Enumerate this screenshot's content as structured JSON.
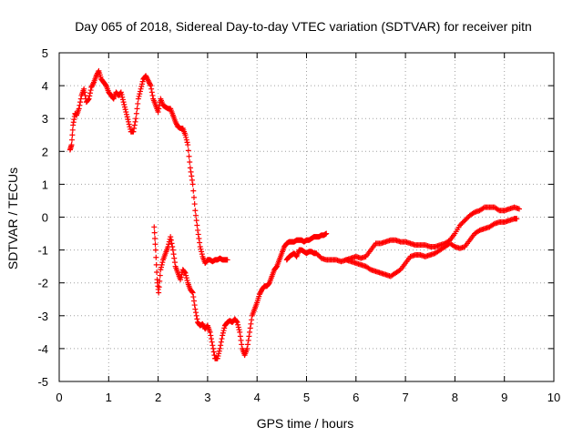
{
  "chart_data": {
    "type": "scatter",
    "title": "Day 065 of 2018, Sidereal Day-to-day VTEC variation (SDTVAR) for receiver pitn",
    "xlabel": "GPS time / hours",
    "ylabel": "SDTVAR / TECUs",
    "xlim": [
      0,
      10
    ],
    "ylim": [
      -5,
      5
    ],
    "xticks": [
      "0",
      "1",
      "2",
      "3",
      "4",
      "5",
      "6",
      "7",
      "8",
      "9",
      "10"
    ],
    "yticks": [
      "-5",
      "-4",
      "-3",
      "-2",
      "-1",
      "0",
      "1",
      "2",
      "3",
      "4",
      "5"
    ],
    "grid": true,
    "marker": "+",
    "color": "#ff0000",
    "series": [
      {
        "x": [
          0.22,
          0.25,
          0.28,
          0.32,
          0.35,
          0.4,
          0.45,
          0.5,
          0.55,
          0.6,
          0.65,
          0.7,
          0.75,
          0.8,
          0.85,
          0.9,
          0.95,
          1.0,
          1.05,
          1.1,
          1.15,
          1.2,
          1.25,
          1.3,
          1.35,
          1.4,
          1.45,
          1.5,
          1.55,
          1.6,
          1.65,
          1.7,
          1.75,
          1.8,
          1.85,
          1.9,
          1.95,
          2.0,
          2.05,
          2.1,
          2.15,
          2.2,
          2.25,
          2.3,
          2.35,
          2.4,
          2.45,
          2.5,
          2.55,
          2.6,
          2.65,
          2.7,
          2.75,
          2.8,
          2.85,
          2.9,
          2.95,
          3.0,
          3.05,
          3.1,
          3.15,
          3.2,
          3.25,
          3.3,
          3.35,
          3.4
        ],
        "y": [
          2.05,
          2.2,
          2.8,
          3.15,
          3.1,
          3.3,
          3.7,
          3.9,
          3.5,
          3.6,
          3.95,
          4.1,
          4.3,
          4.45,
          4.2,
          4.1,
          4.0,
          3.8,
          3.7,
          3.6,
          3.8,
          3.7,
          3.8,
          3.5,
          3.2,
          2.9,
          2.6,
          2.6,
          3.0,
          3.6,
          3.9,
          4.2,
          4.3,
          4.15,
          4.0,
          3.6,
          3.4,
          3.2,
          3.6,
          3.4,
          3.35,
          3.3,
          3.3,
          3.1,
          2.9,
          2.75,
          2.7,
          2.7,
          2.5,
          2.2,
          1.5,
          1.0,
          0.2,
          -0.4,
          -0.9,
          -1.2,
          -1.4,
          -1.3,
          -1.3,
          -1.35,
          -1.3,
          -1.3,
          -1.25,
          -1.3,
          -1.3,
          -1.3
        ]
      },
      {
        "x": [
          1.92,
          1.95,
          1.98,
          2.01,
          2.05,
          2.1,
          2.15,
          2.2,
          2.25,
          2.3,
          2.35,
          2.4,
          2.45,
          2.5,
          2.55,
          2.6,
          2.65,
          2.7,
          2.75,
          2.8,
          2.85,
          2.9,
          2.95,
          3.0,
          3.05,
          3.1,
          3.15,
          3.2,
          3.25,
          3.3,
          3.35,
          3.4,
          3.45,
          3.5,
          3.55,
          3.6,
          3.65,
          3.7,
          3.75,
          3.8,
          3.85,
          3.9,
          3.95,
          4.0,
          4.05,
          4.1,
          4.15,
          4.2,
          4.25,
          4.3,
          4.35,
          4.4,
          4.45,
          4.5,
          4.55,
          4.6,
          4.65,
          4.7,
          4.75,
          4.8,
          4.85,
          4.9,
          4.95,
          5.0,
          5.05,
          5.1,
          5.15,
          5.2,
          5.25,
          5.3,
          5.35,
          5.4
        ],
        "y": [
          -0.3,
          -1.0,
          -1.9,
          -2.3,
          -1.6,
          -1.3,
          -1.1,
          -0.9,
          -0.6,
          -1.0,
          -1.5,
          -1.7,
          -1.9,
          -1.6,
          -1.7,
          -2.0,
          -2.2,
          -2.3,
          -2.8,
          -3.2,
          -3.3,
          -3.25,
          -3.4,
          -3.3,
          -3.5,
          -3.9,
          -4.3,
          -4.3,
          -4.0,
          -3.6,
          -3.3,
          -3.2,
          -3.15,
          -3.2,
          -3.1,
          -3.2,
          -3.5,
          -4.0,
          -4.2,
          -4.0,
          -3.5,
          -3.0,
          -2.8,
          -2.6,
          -2.35,
          -2.2,
          -2.1,
          -2.1,
          -2.0,
          -1.8,
          -1.6,
          -1.5,
          -1.3,
          -1.1,
          -0.9,
          -0.8,
          -0.75,
          -0.75,
          -0.75,
          -0.7,
          -0.7,
          -0.7,
          -0.75,
          -0.7,
          -0.7,
          -0.65,
          -0.6,
          -0.6,
          -0.6,
          -0.55,
          -0.55,
          -0.5
        ]
      },
      {
        "x": [
          4.6,
          4.65,
          4.7,
          4.75,
          4.8,
          4.85,
          4.9,
          4.95,
          5.0,
          5.05,
          5.1,
          5.15,
          5.2,
          5.3,
          5.4,
          5.5,
          5.6,
          5.7,
          5.8,
          5.9,
          6.0,
          6.1,
          6.2,
          6.3,
          6.4,
          6.5,
          6.6,
          6.7,
          6.8,
          6.9,
          7.0,
          7.1,
          7.2,
          7.3,
          7.4,
          7.5,
          7.6,
          7.7,
          7.8,
          7.9,
          8.0,
          8.1,
          8.2,
          8.3,
          8.4,
          8.5,
          8.6,
          8.7,
          8.8,
          8.9,
          9.0,
          9.1,
          9.2,
          9.3
        ],
        "y": [
          -1.3,
          -1.2,
          -1.15,
          -1.1,
          -1.2,
          -1.0,
          -1.0,
          -1.05,
          -1.1,
          -1.05,
          -1.05,
          -1.1,
          -1.1,
          -1.25,
          -1.3,
          -1.3,
          -1.3,
          -1.35,
          -1.3,
          -1.25,
          -1.2,
          -1.25,
          -1.2,
          -1.0,
          -0.8,
          -0.8,
          -0.75,
          -0.7,
          -0.7,
          -0.75,
          -0.75,
          -0.8,
          -0.85,
          -0.85,
          -0.85,
          -0.9,
          -0.9,
          -0.85,
          -0.8,
          -0.7,
          -0.5,
          -0.25,
          -0.1,
          0.05,
          0.15,
          0.2,
          0.3,
          0.3,
          0.3,
          0.2,
          0.2,
          0.25,
          0.3,
          0.25
        ]
      },
      {
        "x": [
          5.8,
          5.9,
          6.0,
          6.1,
          6.2,
          6.3,
          6.4,
          6.5,
          6.6,
          6.7,
          6.8,
          6.9,
          7.0,
          7.1,
          7.2,
          7.3,
          7.4,
          7.5,
          7.6,
          7.7,
          7.8,
          7.9,
          8.0,
          8.1,
          8.2,
          8.3,
          8.4,
          8.5,
          8.6,
          8.7,
          8.8,
          8.9,
          9.0,
          9.1,
          9.2,
          9.25
        ],
        "y": [
          -1.3,
          -1.35,
          -1.4,
          -1.45,
          -1.5,
          -1.6,
          -1.65,
          -1.7,
          -1.75,
          -1.8,
          -1.7,
          -1.6,
          -1.4,
          -1.2,
          -1.15,
          -1.15,
          -1.2,
          -1.15,
          -1.1,
          -1.0,
          -0.9,
          -0.8,
          -0.9,
          -0.95,
          -0.9,
          -0.7,
          -0.5,
          -0.4,
          -0.35,
          -0.3,
          -0.2,
          -0.15,
          -0.15,
          -0.1,
          -0.05,
          -0.05
        ]
      }
    ]
  }
}
